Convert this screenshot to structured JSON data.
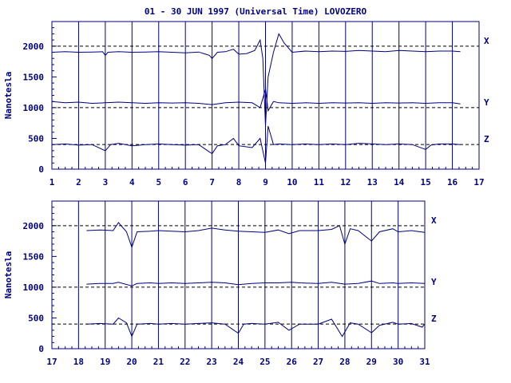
{
  "title": "01 - 30 JUN 1997 (Universal Time) LOVOZERO",
  "chart_data": [
    {
      "type": "line",
      "ylabel": "Nanotesla",
      "xlim": [
        1,
        17
      ],
      "ylim": [
        0,
        2400
      ],
      "x_ticks": [
        "1",
        "2",
        "3",
        "4",
        "5",
        "6",
        "7",
        "8",
        "9",
        "10",
        "11",
        "12",
        "13",
        "14",
        "15",
        "16",
        "17"
      ],
      "y_ticks": [
        "0",
        "500",
        "1000",
        "1500",
        "2000"
      ],
      "baselines": [
        2000,
        1000,
        400
      ],
      "series": [
        {
          "name": "X",
          "values": [
            [
              1.0,
              1900
            ],
            [
              1.5,
              1910
            ],
            [
              2.0,
              1900
            ],
            [
              2.5,
              1905
            ],
            [
              2.9,
              1910
            ],
            [
              3.0,
              1850
            ],
            [
              3.1,
              1900
            ],
            [
              3.5,
              1910
            ],
            [
              4.0,
              1900
            ],
            [
              4.5,
              1905
            ],
            [
              5.0,
              1910
            ],
            [
              5.5,
              1900
            ],
            [
              6.0,
              1890
            ],
            [
              6.5,
              1905
            ],
            [
              6.9,
              1850
            ],
            [
              7.0,
              1800
            ],
            [
              7.2,
              1900
            ],
            [
              7.5,
              1910
            ],
            [
              7.8,
              1950
            ],
            [
              8.0,
              1870
            ],
            [
              8.3,
              1880
            ],
            [
              8.6,
              1930
            ],
            [
              8.8,
              2100
            ],
            [
              8.9,
              1800
            ],
            [
              9.0,
              700
            ],
            [
              9.1,
              1500
            ],
            [
              9.3,
              1900
            ],
            [
              9.5,
              2200
            ],
            [
              9.7,
              2050
            ],
            [
              10.0,
              1900
            ],
            [
              10.5,
              1920
            ],
            [
              11.0,
              1910
            ],
            [
              11.5,
              1920
            ],
            [
              12.0,
              1915
            ],
            [
              12.5,
              1930
            ],
            [
              13.0,
              1920
            ],
            [
              13.5,
              1910
            ],
            [
              14.0,
              1930
            ],
            [
              14.5,
              1920
            ],
            [
              15.0,
              1910
            ],
            [
              15.5,
              1920
            ],
            [
              16.0,
              1920
            ],
            [
              16.3,
              1910
            ]
          ]
        },
        {
          "name": "Y",
          "values": [
            [
              1.0,
              1100
            ],
            [
              1.5,
              1080
            ],
            [
              2.0,
              1090
            ],
            [
              2.5,
              1070
            ],
            [
              3.0,
              1080
            ],
            [
              3.5,
              1090
            ],
            [
              4.0,
              1080
            ],
            [
              4.5,
              1070
            ],
            [
              5.0,
              1080
            ],
            [
              5.5,
              1075
            ],
            [
              6.0,
              1080
            ],
            [
              6.5,
              1070
            ],
            [
              7.0,
              1050
            ],
            [
              7.5,
              1080
            ],
            [
              8.0,
              1090
            ],
            [
              8.5,
              1080
            ],
            [
              8.8,
              1000
            ],
            [
              9.0,
              1300
            ],
            [
              9.1,
              950
            ],
            [
              9.3,
              1100
            ],
            [
              9.5,
              1080
            ],
            [
              10.0,
              1070
            ],
            [
              10.5,
              1080
            ],
            [
              11.0,
              1070
            ],
            [
              11.5,
              1080
            ],
            [
              12.0,
              1075
            ],
            [
              12.5,
              1080
            ],
            [
              13.0,
              1070
            ],
            [
              13.5,
              1080
            ],
            [
              14.0,
              1075
            ],
            [
              14.5,
              1080
            ],
            [
              15.0,
              1070
            ],
            [
              15.5,
              1080
            ],
            [
              16.0,
              1080
            ],
            [
              16.3,
              1060
            ]
          ]
        },
        {
          "name": "Z",
          "values": [
            [
              1.0,
              400
            ],
            [
              1.5,
              410
            ],
            [
              2.0,
              390
            ],
            [
              2.5,
              400
            ],
            [
              3.0,
              300
            ],
            [
              3.2,
              400
            ],
            [
              3.5,
              420
            ],
            [
              4.0,
              380
            ],
            [
              4.5,
              400
            ],
            [
              5.0,
              410
            ],
            [
              5.5,
              400
            ],
            [
              6.0,
              390
            ],
            [
              6.5,
              400
            ],
            [
              7.0,
              250
            ],
            [
              7.2,
              380
            ],
            [
              7.5,
              400
            ],
            [
              7.8,
              500
            ],
            [
              8.0,
              380
            ],
            [
              8.5,
              350
            ],
            [
              8.8,
              500
            ],
            [
              9.0,
              100
            ],
            [
              9.1,
              700
            ],
            [
              9.3,
              400
            ],
            [
              9.5,
              410
            ],
            [
              10.0,
              400
            ],
            [
              10.5,
              410
            ],
            [
              11.0,
              400
            ],
            [
              11.5,
              410
            ],
            [
              12.0,
              400
            ],
            [
              12.5,
              420
            ],
            [
              13.0,
              410
            ],
            [
              13.5,
              400
            ],
            [
              14.0,
              410
            ],
            [
              14.5,
              400
            ],
            [
              15.0,
              320
            ],
            [
              15.2,
              390
            ],
            [
              15.5,
              410
            ],
            [
              16.0,
              410
            ],
            [
              16.3,
              400
            ]
          ]
        }
      ]
    },
    {
      "type": "line",
      "ylabel": "Nanotesla",
      "xlim": [
        17,
        31
      ],
      "ylim": [
        0,
        2400
      ],
      "x_ticks": [
        "17",
        "18",
        "19",
        "20",
        "21",
        "22",
        "23",
        "24",
        "25",
        "26",
        "27",
        "28",
        "29",
        "30",
        "31"
      ],
      "y_ticks": [
        "0",
        "500",
        "1000",
        "1500",
        "2000"
      ],
      "baselines": [
        2000,
        1000,
        400
      ],
      "series": [
        {
          "name": "X",
          "values": [
            [
              18.3,
              1920
            ],
            [
              18.8,
              1930
            ],
            [
              19.3,
              1920
            ],
            [
              19.5,
              2050
            ],
            [
              19.8,
              1900
            ],
            [
              20.0,
              1650
            ],
            [
              20.2,
              1900
            ],
            [
              20.7,
              1910
            ],
            [
              21.0,
              1920
            ],
            [
              21.5,
              1910
            ],
            [
              22.0,
              1900
            ],
            [
              22.5,
              1920
            ],
            [
              23.0,
              1960
            ],
            [
              23.5,
              1930
            ],
            [
              24.0,
              1910
            ],
            [
              24.5,
              1900
            ],
            [
              25.0,
              1890
            ],
            [
              25.5,
              1930
            ],
            [
              25.9,
              1870
            ],
            [
              26.3,
              1920
            ],
            [
              27.0,
              1920
            ],
            [
              27.5,
              1940
            ],
            [
              27.8,
              2000
            ],
            [
              28.0,
              1700
            ],
            [
              28.2,
              1950
            ],
            [
              28.5,
              1920
            ],
            [
              29.0,
              1750
            ],
            [
              29.3,
              1900
            ],
            [
              29.8,
              1950
            ],
            [
              30.0,
              1900
            ],
            [
              30.5,
              1920
            ],
            [
              31.0,
              1890
            ]
          ]
        },
        {
          "name": "Y",
          "values": [
            [
              18.3,
              1050
            ],
            [
              18.8,
              1060
            ],
            [
              19.3,
              1060
            ],
            [
              19.5,
              1080
            ],
            [
              20.0,
              1020
            ],
            [
              20.2,
              1060
            ],
            [
              20.7,
              1070
            ],
            [
              21.0,
              1060
            ],
            [
              21.5,
              1070
            ],
            [
              22.0,
              1060
            ],
            [
              22.5,
              1070
            ],
            [
              23.0,
              1080
            ],
            [
              23.5,
              1070
            ],
            [
              24.0,
              1040
            ],
            [
              24.5,
              1060
            ],
            [
              25.0,
              1070
            ],
            [
              25.5,
              1070
            ],
            [
              26.0,
              1080
            ],
            [
              26.3,
              1070
            ],
            [
              27.0,
              1060
            ],
            [
              27.5,
              1080
            ],
            [
              28.0,
              1050
            ],
            [
              28.5,
              1060
            ],
            [
              29.0,
              1100
            ],
            [
              29.3,
              1060
            ],
            [
              29.8,
              1070
            ],
            [
              30.0,
              1060
            ],
            [
              30.5,
              1070
            ],
            [
              31.0,
              1060
            ]
          ]
        },
        {
          "name": "Z",
          "values": [
            [
              18.3,
              400
            ],
            [
              18.8,
              410
            ],
            [
              19.3,
              400
            ],
            [
              19.5,
              500
            ],
            [
              19.8,
              420
            ],
            [
              20.0,
              200
            ],
            [
              20.2,
              400
            ],
            [
              20.7,
              410
            ],
            [
              21.0,
              400
            ],
            [
              21.5,
              410
            ],
            [
              22.0,
              400
            ],
            [
              22.5,
              410
            ],
            [
              23.0,
              420
            ],
            [
              23.5,
              400
            ],
            [
              24.0,
              250
            ],
            [
              24.2,
              400
            ],
            [
              24.5,
              410
            ],
            [
              25.0,
              400
            ],
            [
              25.5,
              430
            ],
            [
              25.9,
              300
            ],
            [
              26.3,
              400
            ],
            [
              27.0,
              400
            ],
            [
              27.5,
              480
            ],
            [
              27.9,
              200
            ],
            [
              28.2,
              420
            ],
            [
              28.5,
              400
            ],
            [
              29.0,
              260
            ],
            [
              29.3,
              380
            ],
            [
              29.8,
              430
            ],
            [
              30.0,
              400
            ],
            [
              30.5,
              410
            ],
            [
              30.9,
              350
            ],
            [
              31.0,
              400
            ]
          ]
        }
      ]
    }
  ]
}
